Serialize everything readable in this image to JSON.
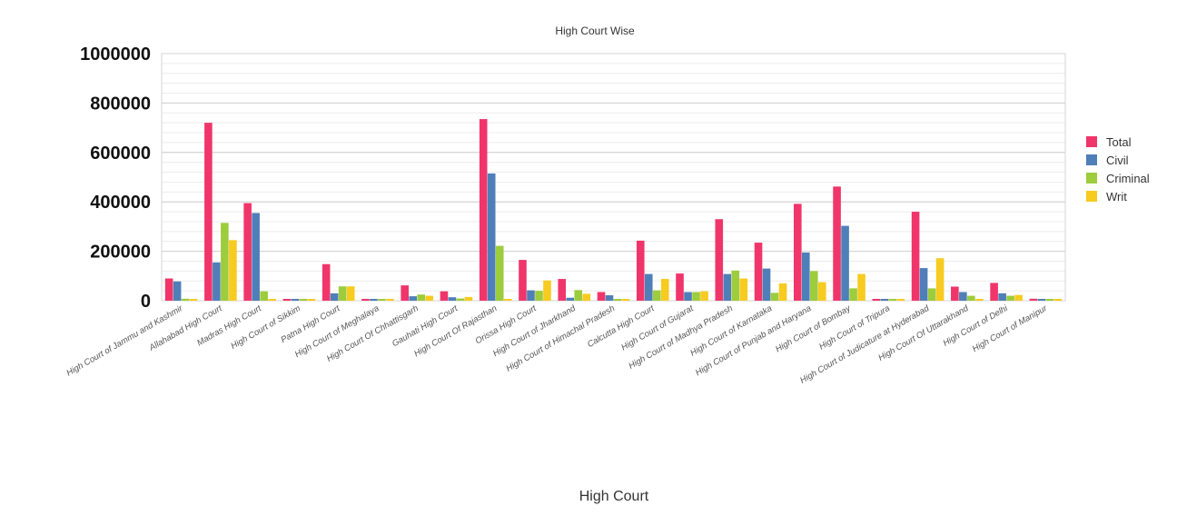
{
  "chart_data": {
    "type": "bar",
    "title": "High Court Wise",
    "xlabel": "High Court",
    "ylabel": "",
    "ylim": [
      0,
      1000000
    ],
    "y_ticks": [
      0,
      200000,
      400000,
      600000,
      800000,
      1000000
    ],
    "grid": true,
    "legend_position": "right",
    "categories": [
      "High Court of Jammu and Kashmir",
      "Allahabad High Court",
      "Madras High Court",
      "High Court of Sikkim",
      "Patna High Court",
      "High Court of Meghalaya",
      "High Court Of Chhattisgarh",
      "Gauhati High Court",
      "High Court Of Rajasthan",
      "Orissa High Court",
      "High Court of Jharkhand",
      "High Court of Himachal Pradesh",
      "Calcutta High Court",
      "High Court of Gujarat",
      "High Court of Madhya Pradesh",
      "High Court of Karnataka",
      "High Court of Punjab and Haryana",
      "High Court of Bombay",
      "High Court of Tripura",
      "High Court of Judicature at Hyderabad",
      "High Court Of Uttarakhand",
      "High Court of Delhi",
      "High Court of Manipur"
    ],
    "series": [
      {
        "name": "Total",
        "color": "#f0356b",
        "values": [
          90000,
          720000,
          395000,
          1500,
          148000,
          1200,
          62000,
          38000,
          735000,
          165000,
          88000,
          35000,
          243000,
          110000,
          330000,
          235000,
          392000,
          462000,
          3500,
          360000,
          57000,
          72000,
          8000
        ]
      },
      {
        "name": "Civil",
        "color": "#4f7fb8",
        "values": [
          78000,
          155000,
          355000,
          800,
          30000,
          700,
          18000,
          14000,
          515000,
          42000,
          12000,
          22000,
          108000,
          35000,
          108000,
          130000,
          195000,
          303000,
          1500,
          132000,
          35000,
          30000,
          6000
        ]
      },
      {
        "name": "Criminal",
        "color": "#9dcc3d",
        "values": [
          8000,
          315000,
          38000,
          400,
          58000,
          300,
          25000,
          9000,
          222000,
          40000,
          43000,
          6000,
          42000,
          35000,
          122000,
          32000,
          120000,
          50000,
          1000,
          50000,
          20000,
          20000,
          1000
        ]
      },
      {
        "name": "Writ",
        "color": "#f7cb20",
        "values": [
          3000,
          245000,
          2000,
          300,
          58000,
          200,
          20000,
          15000,
          2000,
          82000,
          28000,
          2000,
          88000,
          38000,
          90000,
          70000,
          75000,
          108000,
          1000,
          172000,
          2000,
          23000,
          500
        ]
      }
    ]
  }
}
